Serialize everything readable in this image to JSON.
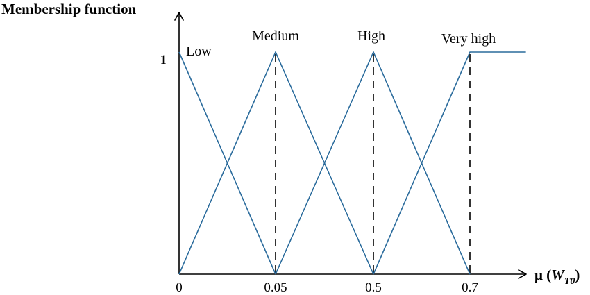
{
  "chart_data": {
    "type": "line",
    "ylabel": "Membership function",
    "xlabel": {
      "prefix": "μ (",
      "var": "W",
      "sub": "T0",
      "suffix": ")"
    },
    "x_ticks": [
      "0",
      "0.05",
      "0.5",
      "0.7"
    ],
    "y_ticks": [
      "1"
    ],
    "ylim": [
      0,
      1
    ],
    "series": [
      {
        "name": "Low",
        "points": [
          [
            0,
            1
          ],
          [
            1,
            0
          ]
        ]
      },
      {
        "name": "Medium",
        "points": [
          [
            0,
            0
          ],
          [
            1,
            1
          ],
          [
            2,
            0
          ]
        ]
      },
      {
        "name": "High",
        "points": [
          [
            1,
            0
          ],
          [
            2,
            1
          ],
          [
            3,
            0
          ]
        ]
      },
      {
        "name": "Very high",
        "points": [
          [
            2,
            0
          ],
          [
            3,
            1
          ],
          [
            3.58,
            1
          ]
        ]
      }
    ],
    "dashed_guides_at_tick_index": [
      1,
      2,
      3
    ],
    "grid": false,
    "legend": "labels above peaks",
    "colors": {
      "series": "#2a6b9c",
      "axis": "#000000"
    }
  }
}
